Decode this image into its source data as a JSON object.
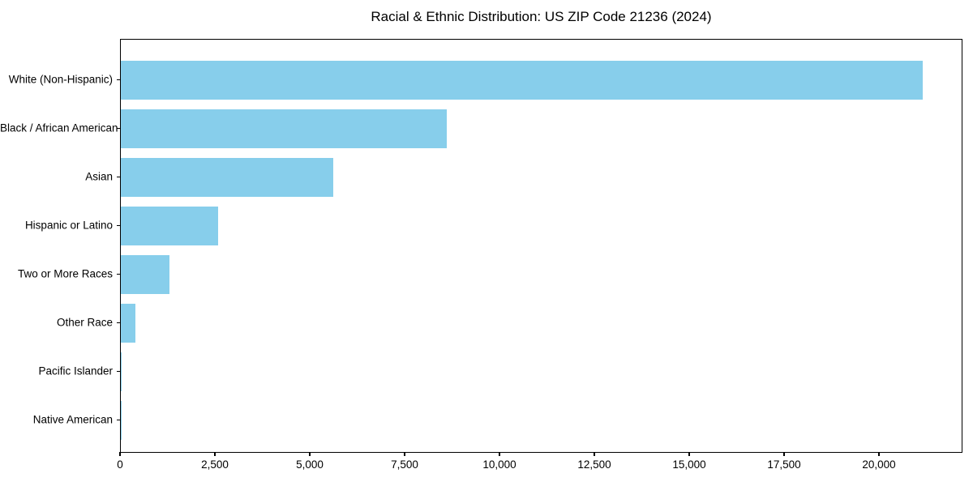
{
  "chart_data": {
    "type": "bar",
    "orientation": "horizontal",
    "title": "Racial & Ethnic Distribution: US ZIP Code 21236 (2024)",
    "categories": [
      "White (Non-Hispanic)",
      "Black / African American",
      "Asian",
      "Hispanic or Latino",
      "Two or More Races",
      "Other Race",
      "Pacific Islander",
      "Native American"
    ],
    "values": [
      21130,
      8590,
      5600,
      2565,
      1280,
      390,
      25,
      12
    ],
    "xlabel": "",
    "ylabel": "",
    "xlim": [
      0,
      22200
    ],
    "x_ticks": [
      0,
      2500,
      5000,
      7500,
      10000,
      12500,
      15000,
      17500,
      20000
    ],
    "bar_color": "#87CEEB",
    "frame_color": "#000000",
    "background_color": "#ffffff",
    "grid": false,
    "legend": null
  }
}
